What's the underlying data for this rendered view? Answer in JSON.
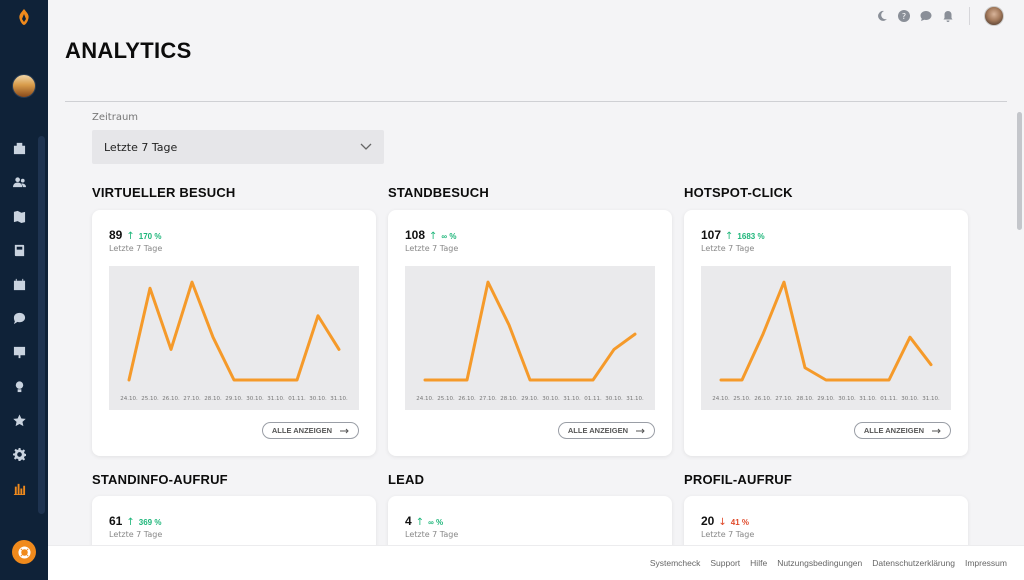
{
  "page": {
    "title": "ANALYTICS"
  },
  "sidebar": {
    "items": [
      {
        "icon": "dashboard-icon"
      },
      {
        "icon": "users-icon"
      },
      {
        "icon": "map-icon"
      },
      {
        "icon": "book-icon"
      },
      {
        "icon": "calendar-icon"
      },
      {
        "icon": "chat-icon"
      },
      {
        "icon": "presentation-icon"
      },
      {
        "icon": "lightbulb-icon"
      },
      {
        "icon": "star-icon"
      },
      {
        "icon": "gear-icon"
      },
      {
        "icon": "bar-chart-icon"
      }
    ],
    "accent": "#f08a1c",
    "background": "#0f2238"
  },
  "filter": {
    "label": "Zeitraum",
    "selected": "Letzte 7 Tage"
  },
  "sections": [
    {
      "title": "VIRTUELLER BESUCH",
      "value": "89",
      "trend": "up",
      "arrow": "↑",
      "change": "170 %",
      "period": "Letzte 7 Tage",
      "button": "ALLE ANZEIGEN",
      "chart_data": {
        "type": "line",
        "x": [
          "24.10.",
          "25.10.",
          "26.10.",
          "27.10.",
          "28.10.",
          "29.10.",
          "30.10.",
          "31.10.",
          "01.11.",
          "30.10.",
          "31.10."
        ],
        "values": [
          0,
          30,
          10,
          32,
          14,
          0,
          0,
          0,
          0,
          21,
          10
        ],
        "ylim": [
          0,
          34
        ]
      }
    },
    {
      "title": "STANDBESUCH",
      "value": "108",
      "trend": "up",
      "arrow": "↑",
      "change": "∞ %",
      "period": "Letzte 7 Tage",
      "button": "ALLE ANZEIGEN",
      "chart_data": {
        "type": "line",
        "x": [
          "24.10.",
          "25.10.",
          "26.10.",
          "27.10.",
          "28.10.",
          "29.10.",
          "30.10.",
          "31.10.",
          "01.11.",
          "30.10.",
          "31.10."
        ],
        "values": [
          0,
          0,
          0,
          32,
          18,
          0,
          0,
          0,
          0,
          10,
          15
        ],
        "ylim": [
          0,
          34
        ]
      }
    },
    {
      "title": "HOTSPOT-CLICK",
      "value": "107",
      "trend": "up",
      "arrow": "↑",
      "change": "1683 %",
      "period": "Letzte 7 Tage",
      "button": "ALLE ANZEIGEN",
      "chart_data": {
        "type": "line",
        "x": [
          "24.10.",
          "25.10.",
          "26.10.",
          "27.10.",
          "28.10.",
          "29.10.",
          "30.10.",
          "31.10.",
          "01.11.",
          "30.10.",
          "31.10."
        ],
        "values": [
          0,
          0,
          15,
          32,
          4,
          0,
          0,
          0,
          0,
          14,
          5
        ],
        "ylim": [
          0,
          34
        ]
      }
    },
    {
      "title": "STANDINFO-AUFRUF",
      "value": "61",
      "trend": "up",
      "arrow": "↑",
      "change": "369 %",
      "period": "Letzte 7 Tage"
    },
    {
      "title": "LEAD",
      "value": "4",
      "trend": "up",
      "arrow": "↑",
      "change": "∞ %",
      "period": "Letzte 7 Tage"
    },
    {
      "title": "PROFIL-AUFRUF",
      "value": "20",
      "trend": "down",
      "arrow": "↓",
      "change": "41 %",
      "period": "Letzte 7 Tage"
    }
  ],
  "colors": {
    "line": "#f59a2a",
    "up": "#1eb67a",
    "down": "#e04a2a",
    "chart_bg": "#eaeaec"
  },
  "topbar": {
    "icons": [
      "moon-icon",
      "help-circle-icon",
      "chat-bubble-icon",
      "bell-icon"
    ]
  },
  "footer": {
    "links": [
      "Systemcheck",
      "Support",
      "Hilfe",
      "Nutzungsbedingungen",
      "Datenschutzerklärung",
      "Impressum"
    ]
  }
}
